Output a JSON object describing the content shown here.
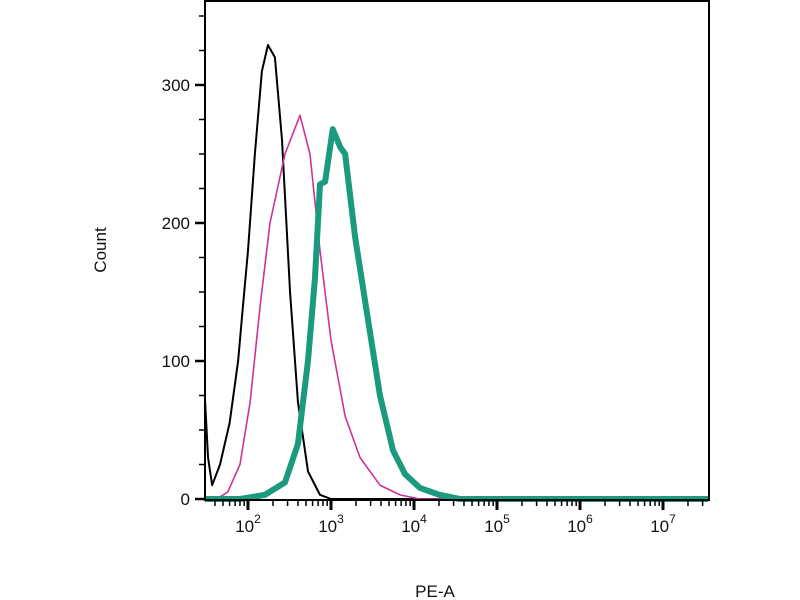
{
  "chart_data": {
    "type": "line",
    "title": "",
    "xlabel": "PE-A",
    "ylabel": "Count",
    "xscale": "log",
    "xlim": [
      30,
      35000000
    ],
    "ylim": [
      0,
      362
    ],
    "x_ticks": [
      {
        "base": "10",
        "exp": "2",
        "value": 100
      },
      {
        "base": "10",
        "exp": "3",
        "value": 1000
      },
      {
        "base": "10",
        "exp": "4",
        "value": 10000
      },
      {
        "base": "10",
        "exp": "5",
        "value": 100000
      },
      {
        "base": "10",
        "exp": "6",
        "value": 1000000
      },
      {
        "base": "10",
        "exp": "7",
        "value": 10000000
      }
    ],
    "y_ticks": [
      {
        "label": "0",
        "value": 0
      },
      {
        "label": "100",
        "value": 100
      },
      {
        "label": "200",
        "value": 200
      },
      {
        "label": "300",
        "value": 300
      }
    ],
    "grid": false,
    "series": [
      {
        "color": "#000000",
        "x": [
          30,
          33,
          37,
          46,
          60,
          76,
          87,
          100,
          121,
          147,
          174,
          211,
          257,
          321,
          400,
          528,
          737,
          1000,
          35000000
        ],
        "y": [
          72,
          30,
          10,
          25,
          55,
          100,
          140,
          180,
          250,
          310,
          329,
          320,
          260,
          150,
          70,
          20,
          3,
          0,
          0
        ]
      },
      {
        "color": "#cc3399",
        "x": [
          30,
          42,
          57,
          80,
          106,
          140,
          184,
          279,
          423,
          558,
          737,
          1000,
          1480,
          2240,
          3890,
          6770,
          11800,
          35000000
        ],
        "y": [
          0,
          0,
          5,
          25,
          70,
          140,
          200,
          250,
          278,
          250,
          180,
          115,
          60,
          30,
          10,
          3,
          0,
          0
        ]
      },
      {
        "color": "#1a9a7e",
        "x": [
          30,
          80,
          160,
          279,
          400,
          528,
          641,
          737,
          850,
          1050,
          1290,
          1480,
          1950,
          2790,
          3890,
          5600,
          7800,
          11800,
          20300,
          35500,
          35000000
        ],
        "y": [
          0,
          0,
          3,
          12,
          40,
          100,
          160,
          228,
          230,
          268,
          255,
          250,
          190,
          130,
          75,
          35,
          18,
          8,
          3,
          0,
          0
        ]
      }
    ]
  }
}
